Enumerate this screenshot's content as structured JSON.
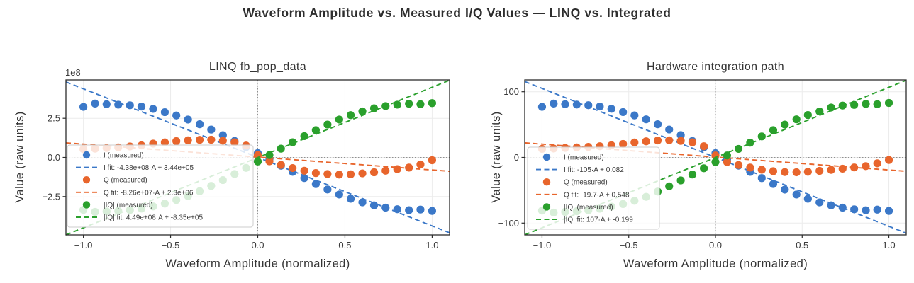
{
  "page": {
    "title": "Waveform Amplitude vs. Measured I/Q Values — LINQ vs. Integrated"
  },
  "colors": {
    "i": "#3b78c8",
    "q": "#e8652c",
    "iq": "#2aa02c",
    "text": "#3a3a3a",
    "grid": "#ececec",
    "zero_line": "#8f8f8f",
    "spine": "#2d2d2d",
    "legend_border": "#cccccc"
  },
  "chart_data": [
    {
      "type": "scatter",
      "title": "LINQ fb_pop_data",
      "xlabel": "Waveform Amplitude (normalized)",
      "ylabel": "Value (raw units)",
      "offset_label": "1e8",
      "y_unit": "1e8",
      "xlim": [
        -1.1,
        1.1
      ],
      "ylim": [
        -4.95,
        4.95
      ],
      "x_ticks": [
        -1,
        -0.5,
        0,
        0.5,
        1
      ],
      "x_tick_labels": [
        "−1.0",
        "−0.5",
        "0.0",
        "0.5",
        "1.0"
      ],
      "y_ticks": [
        -2.5,
        0,
        2.5
      ],
      "y_tick_labels": [
        "−2.5",
        "0.0",
        "2.5"
      ],
      "grid": true,
      "legend_position": "lower left",
      "x": [
        -1.0,
        -0.933,
        -0.867,
        -0.8,
        -0.733,
        -0.667,
        -0.6,
        -0.533,
        -0.467,
        -0.4,
        -0.333,
        -0.267,
        -0.2,
        -0.133,
        -0.067,
        0.0,
        0.067,
        0.133,
        0.2,
        0.267,
        0.333,
        0.4,
        0.467,
        0.533,
        0.6,
        0.667,
        0.733,
        0.8,
        0.867,
        0.933,
        1.0
      ],
      "series": [
        {
          "name": "I (measured)",
          "color_key": "i",
          "values": [
            3.23,
            3.44,
            3.4,
            3.37,
            3.33,
            3.25,
            3.1,
            2.89,
            2.68,
            2.42,
            2.12,
            1.78,
            1.42,
            1.05,
            0.66,
            0.27,
            -0.13,
            -0.53,
            -0.92,
            -1.32,
            -1.7,
            -2.05,
            -2.37,
            -2.64,
            -2.87,
            -3.06,
            -3.21,
            -3.31,
            -3.37,
            -3.33,
            -3.42
          ]
        },
        {
          "name": "Q (measured)",
          "color_key": "q",
          "values": [
            0.53,
            0.56,
            0.6,
            0.64,
            0.7,
            0.77,
            0.88,
            0.96,
            1.04,
            1.09,
            1.12,
            1.13,
            1.07,
            0.97,
            0.76,
            0.15,
            -0.25,
            -0.48,
            -0.68,
            -0.85,
            -1.0,
            -1.06,
            -1.1,
            -1.08,
            -1.02,
            -0.95,
            -0.85,
            -0.75,
            -0.65,
            -0.45,
            -0.18
          ]
        },
        {
          "name": "|IQ| (measured)",
          "color_key": "iq",
          "values": [
            -3.35,
            -3.48,
            -3.45,
            -3.42,
            -3.36,
            -3.27,
            -3.13,
            -2.95,
            -2.72,
            -2.47,
            -2.16,
            -1.82,
            -1.45,
            -1.06,
            -0.67,
            -0.26,
            0.15,
            0.56,
            0.97,
            1.36,
            1.74,
            2.1,
            2.42,
            2.7,
            2.94,
            3.14,
            3.28,
            3.37,
            3.43,
            3.4,
            3.47
          ]
        }
      ],
      "fits": [
        {
          "label": "I fit: -4.38e+08·A + 3.44e+05",
          "slope": -4.38,
          "intercept": 0.00344,
          "color_key": "i"
        },
        {
          "label": "Q fit: -8.26e+07·A + 2.3e+06",
          "slope": -0.826,
          "intercept": 0.023,
          "color_key": "q"
        },
        {
          "label": "|IQ| fit: 4.49e+08·A + -8.35e+05",
          "slope": 4.49,
          "intercept": -0.00835,
          "color_key": "iq"
        }
      ]
    },
    {
      "type": "scatter",
      "title": "Hardware integration path",
      "xlabel": "Waveform Amplitude (normalized)",
      "ylabel": "Value (raw units)",
      "offset_label": "",
      "y_unit": "raw",
      "xlim": [
        -1.1,
        1.1
      ],
      "ylim": [
        -118,
        118
      ],
      "x_ticks": [
        -1,
        -0.5,
        0,
        0.5,
        1
      ],
      "x_tick_labels": [
        "−1.0",
        "−0.5",
        "0.0",
        "0.5",
        "1.0"
      ],
      "y_ticks": [
        -100,
        0,
        100
      ],
      "y_tick_labels": [
        "−100",
        "0",
        "100"
      ],
      "grid": true,
      "legend_position": "lower left",
      "x": [
        -1.0,
        -0.933,
        -0.867,
        -0.8,
        -0.733,
        -0.667,
        -0.6,
        -0.533,
        -0.467,
        -0.4,
        -0.333,
        -0.267,
        -0.2,
        -0.133,
        -0.067,
        0.0,
        0.067,
        0.133,
        0.2,
        0.267,
        0.333,
        0.4,
        0.467,
        0.533,
        0.6,
        0.667,
        0.733,
        0.8,
        0.867,
        0.933,
        1.0
      ],
      "series": [
        {
          "name": "I (measured)",
          "color_key": "i",
          "values": [
            77,
            82,
            81,
            80.5,
            79.5,
            77.5,
            74,
            69,
            64,
            58,
            50.5,
            42.5,
            34,
            25,
            15.5,
            6.5,
            -3,
            -12.5,
            -22,
            -31.5,
            -40.5,
            -49,
            -56.5,
            -63,
            -68.5,
            -73,
            -76.5,
            -79,
            -80.5,
            -79.5,
            -81.5
          ]
        },
        {
          "name": "Q (measured)",
          "color_key": "q",
          "values": [
            13,
            13.5,
            14.5,
            15.2,
            16,
            17,
            18.5,
            20.5,
            22.8,
            24.5,
            25.8,
            26,
            25.2,
            23,
            17,
            3,
            -7,
            -11.5,
            -15.5,
            -18.8,
            -21,
            -22.3,
            -22.6,
            -21.8,
            -20.5,
            -19,
            -17.2,
            -15.3,
            -13.3,
            -9,
            -4
          ]
        },
        {
          "name": "|IQ| (measured)",
          "color_key": "iq",
          "values": [
            -81,
            -84,
            -83,
            -82,
            -80.5,
            -78,
            -75,
            -71,
            -66,
            -60,
            -52,
            -44,
            -35,
            -26,
            -16.5,
            -7,
            3,
            13,
            22.5,
            32,
            41.5,
            50,
            58,
            64.5,
            70,
            76,
            79,
            80,
            81.5,
            81,
            83
          ]
        }
      ],
      "fits": [
        {
          "label": "I fit: -105·A + 0.082",
          "slope": -105,
          "intercept": 0.082,
          "color_key": "i"
        },
        {
          "label": "Q fit: -19.7·A + 0.548",
          "slope": -19.7,
          "intercept": 0.548,
          "color_key": "q"
        },
        {
          "label": "|IQ| fit: 107·A + -0.199",
          "slope": 107,
          "intercept": -0.199,
          "color_key": "iq"
        }
      ]
    }
  ]
}
